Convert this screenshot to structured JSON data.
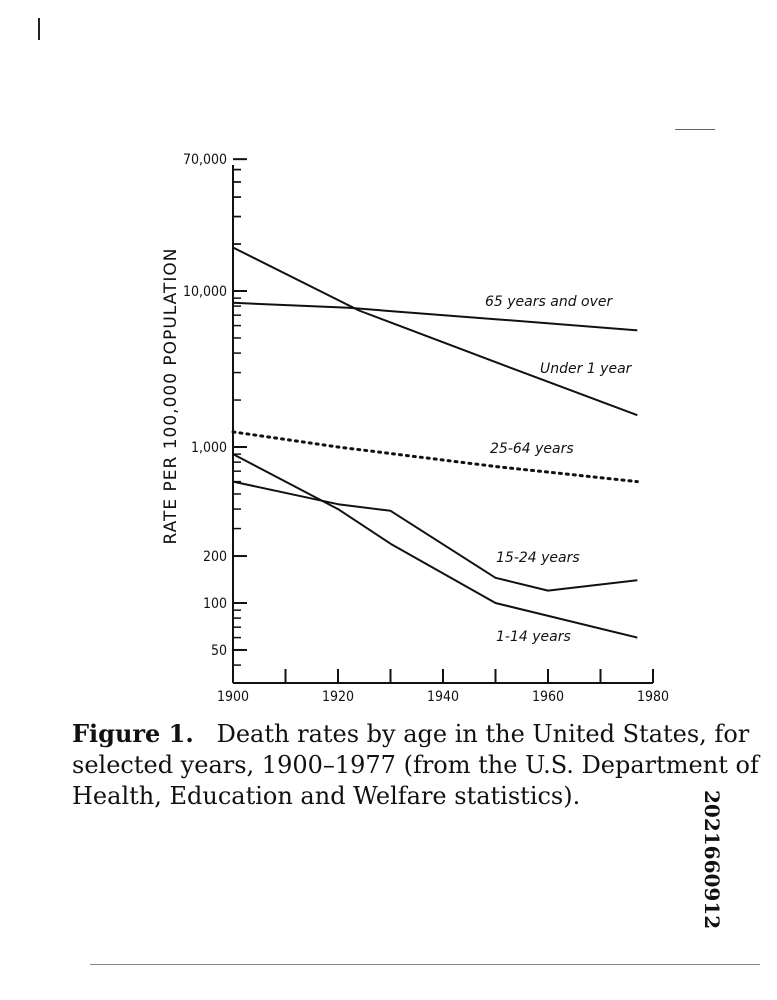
{
  "chart_data": {
    "type": "line",
    "title": "",
    "xlabel": "",
    "ylabel": "RATE PER 100,000 POPULATION",
    "xlim": [
      1900,
      1980
    ],
    "ylim": [
      30,
      70000
    ],
    "y_scale": "log",
    "grid": false,
    "x_ticks": [
      "1900",
      "1920",
      "1940",
      "1960",
      "1980"
    ],
    "y_ticks": [
      "70,000",
      "10,000",
      "1,000",
      "200",
      "100",
      "50"
    ],
    "series": [
      {
        "name": "65 years and over",
        "style": "solid",
        "x": [
          1900,
          1922,
          1950,
          1977
        ],
        "y": [
          8400,
          7800,
          6600,
          5600
        ]
      },
      {
        "name": "Under 1 year",
        "style": "solid",
        "x": [
          1900,
          1924,
          1950,
          1977
        ],
        "y": [
          19000,
          7500,
          3500,
          1600
        ]
      },
      {
        "name": "25-64 years",
        "style": "dotted",
        "x": [
          1900,
          1920,
          1950,
          1977
        ],
        "y": [
          1250,
          1000,
          750,
          600
        ]
      },
      {
        "name": "15-24 years",
        "style": "solid",
        "x": [
          1900,
          1920,
          1930,
          1950,
          1960,
          1977
        ],
        "y": [
          600,
          430,
          390,
          145,
          120,
          140
        ]
      },
      {
        "name": "1-14 years",
        "style": "solid",
        "x": [
          1900,
          1920,
          1930,
          1950,
          1977
        ],
        "y": [
          900,
          400,
          240,
          100,
          60
        ]
      }
    ],
    "series_labels": [
      "65 years and over",
      "Under 1 year",
      "25-64 years",
      "15-24 years",
      "1-14 years"
    ]
  },
  "caption": {
    "label": "Figure 1.",
    "text": "Death rates by age in the United States, for selected years, 1900–1977 (from the U.S. Department of Health, Education and Welfare statistics)."
  },
  "document_id": "2021660912"
}
